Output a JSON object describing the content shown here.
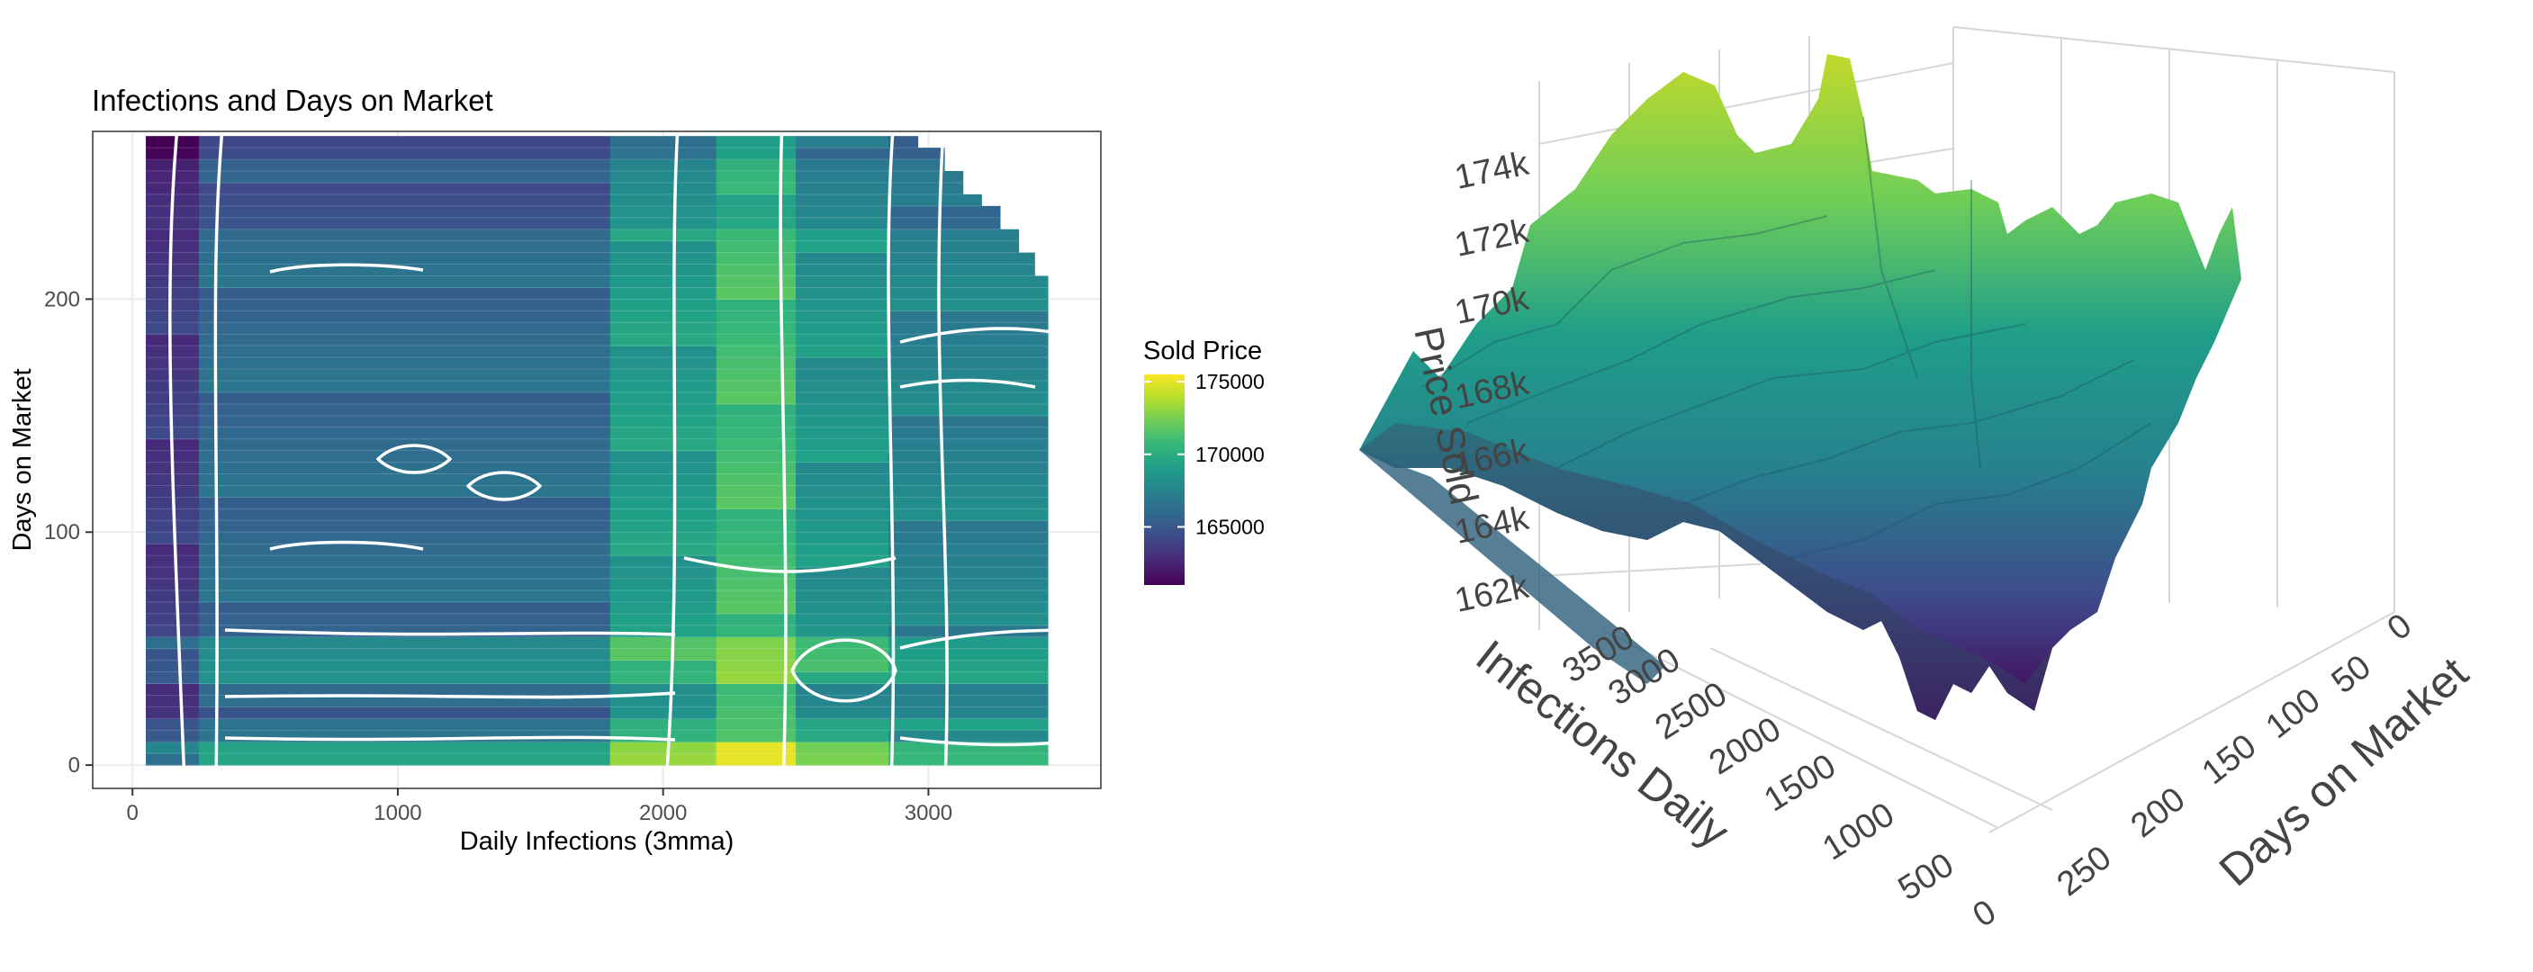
{
  "chart_data": [
    {
      "type": "heatmap",
      "title": "Infections and Days on Market",
      "xlabel": "Daily Infections (3mma)",
      "ylabel": "Days on Market",
      "xlim": [
        -150,
        3650
      ],
      "ylim": [
        -10,
        272
      ],
      "x_ticks": [
        0,
        1000,
        2000,
        3000
      ],
      "y_ticks": [
        0,
        100,
        200
      ],
      "x_tick_labels": [
        "0",
        "1000",
        "2000",
        "3000"
      ],
      "y_tick_labels": [
        "0",
        "100",
        "200"
      ],
      "grid": true,
      "legend": {
        "title": "Sold Price",
        "placement": "right",
        "range": [
          161000,
          175500
        ],
        "ticks": [
          165000,
          170000,
          175000
        ],
        "tick_labels": [
          "165000",
          "170000",
          "175000"
        ],
        "colormap": "viridis"
      },
      "x_extent": [
        50,
        3450
      ],
      "y_extent": [
        0,
        270
      ],
      "row_right_ends": [
        {
          "y_min": 262,
          "x_end": 2960
        },
        {
          "y_min": 254,
          "x_end": 3060
        },
        {
          "y_min": 245,
          "x_end": 3130
        },
        {
          "y_min": 236,
          "x_end": 3200
        },
        {
          "y_min": 227,
          "x_end": 3270
        },
        {
          "y_min": 218,
          "x_end": 3340
        },
        {
          "y_min": 209,
          "x_end": 3400
        },
        {
          "y_min": 0,
          "x_end": 3450
        }
      ],
      "column_breaks": [
        50,
        250,
        1800,
        2200,
        2500,
        2850,
        3450
      ],
      "column_base_price": [
        163500,
        166000,
        169000,
        171000,
        168500,
        167500
      ],
      "row_price_adjustment": [
        {
          "y_from": 0,
          "y_to": 10,
          "delta": 3500
        },
        {
          "y_from": 10,
          "y_to": 20,
          "delta": 1000
        },
        {
          "y_from": 20,
          "y_to": 35,
          "delta": -500
        },
        {
          "y_from": 35,
          "y_to": 55,
          "delta": 2000
        },
        {
          "y_from": 55,
          "y_to": 230,
          "delta": 0
        },
        {
          "y_from": 230,
          "y_to": 260,
          "delta": -1000
        },
        {
          "y_from": 260,
          "y_to": 270,
          "delta": -2000
        }
      ],
      "hotspot": {
        "x_from": 2200,
        "x_to": 2500,
        "y_from": 0,
        "y_to": 8,
        "price": 175000
      }
    },
    {
      "type": "surface",
      "x_label": "Infections Daily",
      "y_label": "Days on Market",
      "z_label": "Price Sold",
      "z_ticks": [
        "162k",
        "164k",
        "166k",
        "168k",
        "170k",
        "172k",
        "174k"
      ],
      "x_ticks": [
        "0",
        "500",
        "1000",
        "1500",
        "2000",
        "2500",
        "3000",
        "3500"
      ],
      "y_ticks": [
        "0",
        "50",
        "100",
        "150",
        "200",
        "250"
      ],
      "colormap": "viridis"
    }
  ],
  "colors": {
    "background": "#ffffff",
    "contour": "#ffffff",
    "panel_border": "#333333",
    "grid": "#ebebeb",
    "axis_text": "#4d4d4d",
    "title_text": "#000000",
    "viridis": [
      "#440154",
      "#482878",
      "#3e4989",
      "#31688e",
      "#26828e",
      "#1f9e89",
      "#35b779",
      "#6ece58",
      "#b5de2b",
      "#fde725"
    ]
  }
}
